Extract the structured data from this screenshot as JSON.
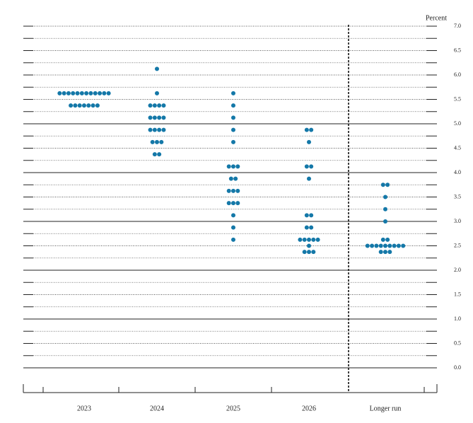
{
  "chart_data": {
    "type": "dot",
    "y_axis_label": "Percent",
    "categories": [
      "2023",
      "2024",
      "2025",
      "2026",
      "Longer run"
    ],
    "color": "#1478a8",
    "ylim": [
      0,
      7
    ],
    "yticks": [
      {
        "value": 0,
        "label": "0.0"
      },
      0.5,
      {
        "value": 1,
        "label": "1.0"
      },
      1.5,
      {
        "value": 2,
        "label": "2.0"
      },
      2.5,
      {
        "value": 3,
        "label": "3.0"
      },
      3.5,
      {
        "value": 4,
        "label": "4.0"
      },
      4.5,
      {
        "value": 5,
        "label": "5.0"
      },
      5.5,
      {
        "value": 6,
        "label": "6.0"
      },
      6.5,
      {
        "value": 7,
        "label": "7.0"
      }
    ],
    "solid_gridlines": [
      0,
      1,
      2,
      3,
      4,
      5
    ],
    "dots": [
      [
        {
          "value": 5.625,
          "count": 12
        },
        {
          "value": 5.375,
          "count": 7
        }
      ],
      [
        {
          "value": 6.125,
          "count": 1
        },
        {
          "value": 5.625,
          "count": 1
        },
        {
          "value": 5.375,
          "count": 4
        },
        {
          "value": 5.125,
          "count": 4
        },
        {
          "value": 4.875,
          "count": 4
        },
        {
          "value": 4.625,
          "count": 3
        },
        {
          "value": 4.375,
          "count": 2
        }
      ],
      [
        {
          "value": 5.625,
          "count": 1
        },
        {
          "value": 5.375,
          "count": 1
        },
        {
          "value": 5.125,
          "count": 1
        },
        {
          "value": 4.875,
          "count": 1
        },
        {
          "value": 4.625,
          "count": 1
        },
        {
          "value": 4.125,
          "count": 3
        },
        {
          "value": 3.875,
          "count": 2
        },
        {
          "value": 3.625,
          "count": 3
        },
        {
          "value": 3.375,
          "count": 3
        },
        {
          "value": 3.125,
          "count": 1
        },
        {
          "value": 2.875,
          "count": 1
        },
        {
          "value": 2.625,
          "count": 1
        }
      ],
      [
        {
          "value": 4.875,
          "count": 2
        },
        {
          "value": 4.625,
          "count": 1
        },
        {
          "value": 4.125,
          "count": 2
        },
        {
          "value": 3.875,
          "count": 1
        },
        {
          "value": 3.125,
          "count": 2
        },
        {
          "value": 2.875,
          "count": 2
        },
        {
          "value": 2.625,
          "count": 5
        },
        {
          "value": 2.5,
          "count": 1
        },
        {
          "value": 2.375,
          "count": 3
        }
      ],
      [
        {
          "value": 3.75,
          "count": 2
        },
        {
          "value": 3.5,
          "count": 1
        },
        {
          "value": 3.25,
          "count": 1
        },
        {
          "value": 3.0,
          "count": 1
        },
        {
          "value": 2.625,
          "count": 2
        },
        {
          "value": 2.5,
          "count": 9
        },
        {
          "value": 2.375,
          "count": 3
        }
      ]
    ]
  }
}
